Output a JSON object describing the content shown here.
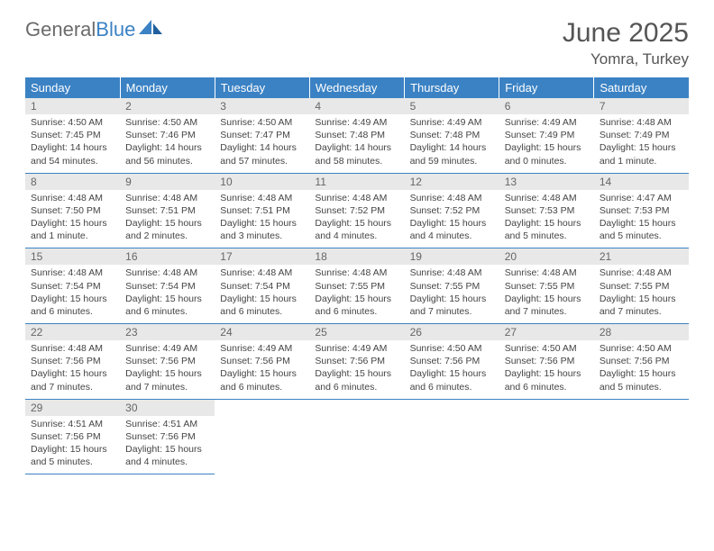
{
  "brand": {
    "part1": "General",
    "part2": "Blue",
    "color_primary": "#3b82c4",
    "color_secondary": "#6b6b6b"
  },
  "title": "June 2025",
  "location": "Yomra, Turkey",
  "weekdays": [
    "Sunday",
    "Monday",
    "Tuesday",
    "Wednesday",
    "Thursday",
    "Friday",
    "Saturday"
  ],
  "colors": {
    "header_bg": "#3b82c4",
    "header_text": "#ffffff",
    "daynum_bg": "#e8e8e8",
    "daynum_text": "#666666",
    "body_text": "#444444",
    "border": "#3b82c4"
  },
  "weeks": [
    [
      {
        "n": "1",
        "sr": "4:50 AM",
        "ss": "7:45 PM",
        "dl": "14 hours and 54 minutes."
      },
      {
        "n": "2",
        "sr": "4:50 AM",
        "ss": "7:46 PM",
        "dl": "14 hours and 56 minutes."
      },
      {
        "n": "3",
        "sr": "4:50 AM",
        "ss": "7:47 PM",
        "dl": "14 hours and 57 minutes."
      },
      {
        "n": "4",
        "sr": "4:49 AM",
        "ss": "7:48 PM",
        "dl": "14 hours and 58 minutes."
      },
      {
        "n": "5",
        "sr": "4:49 AM",
        "ss": "7:48 PM",
        "dl": "14 hours and 59 minutes."
      },
      {
        "n": "6",
        "sr": "4:49 AM",
        "ss": "7:49 PM",
        "dl": "15 hours and 0 minutes."
      },
      {
        "n": "7",
        "sr": "4:48 AM",
        "ss": "7:49 PM",
        "dl": "15 hours and 1 minute."
      }
    ],
    [
      {
        "n": "8",
        "sr": "4:48 AM",
        "ss": "7:50 PM",
        "dl": "15 hours and 1 minute."
      },
      {
        "n": "9",
        "sr": "4:48 AM",
        "ss": "7:51 PM",
        "dl": "15 hours and 2 minutes."
      },
      {
        "n": "10",
        "sr": "4:48 AM",
        "ss": "7:51 PM",
        "dl": "15 hours and 3 minutes."
      },
      {
        "n": "11",
        "sr": "4:48 AM",
        "ss": "7:52 PM",
        "dl": "15 hours and 4 minutes."
      },
      {
        "n": "12",
        "sr": "4:48 AM",
        "ss": "7:52 PM",
        "dl": "15 hours and 4 minutes."
      },
      {
        "n": "13",
        "sr": "4:48 AM",
        "ss": "7:53 PM",
        "dl": "15 hours and 5 minutes."
      },
      {
        "n": "14",
        "sr": "4:47 AM",
        "ss": "7:53 PM",
        "dl": "15 hours and 5 minutes."
      }
    ],
    [
      {
        "n": "15",
        "sr": "4:48 AM",
        "ss": "7:54 PM",
        "dl": "15 hours and 6 minutes."
      },
      {
        "n": "16",
        "sr": "4:48 AM",
        "ss": "7:54 PM",
        "dl": "15 hours and 6 minutes."
      },
      {
        "n": "17",
        "sr": "4:48 AM",
        "ss": "7:54 PM",
        "dl": "15 hours and 6 minutes."
      },
      {
        "n": "18",
        "sr": "4:48 AM",
        "ss": "7:55 PM",
        "dl": "15 hours and 6 minutes."
      },
      {
        "n": "19",
        "sr": "4:48 AM",
        "ss": "7:55 PM",
        "dl": "15 hours and 7 minutes."
      },
      {
        "n": "20",
        "sr": "4:48 AM",
        "ss": "7:55 PM",
        "dl": "15 hours and 7 minutes."
      },
      {
        "n": "21",
        "sr": "4:48 AM",
        "ss": "7:55 PM",
        "dl": "15 hours and 7 minutes."
      }
    ],
    [
      {
        "n": "22",
        "sr": "4:48 AM",
        "ss": "7:56 PM",
        "dl": "15 hours and 7 minutes."
      },
      {
        "n": "23",
        "sr": "4:49 AM",
        "ss": "7:56 PM",
        "dl": "15 hours and 7 minutes."
      },
      {
        "n": "24",
        "sr": "4:49 AM",
        "ss": "7:56 PM",
        "dl": "15 hours and 6 minutes."
      },
      {
        "n": "25",
        "sr": "4:49 AM",
        "ss": "7:56 PM",
        "dl": "15 hours and 6 minutes."
      },
      {
        "n": "26",
        "sr": "4:50 AM",
        "ss": "7:56 PM",
        "dl": "15 hours and 6 minutes."
      },
      {
        "n": "27",
        "sr": "4:50 AM",
        "ss": "7:56 PM",
        "dl": "15 hours and 6 minutes."
      },
      {
        "n": "28",
        "sr": "4:50 AM",
        "ss": "7:56 PM",
        "dl": "15 hours and 5 minutes."
      }
    ],
    [
      {
        "n": "29",
        "sr": "4:51 AM",
        "ss": "7:56 PM",
        "dl": "15 hours and 5 minutes."
      },
      {
        "n": "30",
        "sr": "4:51 AM",
        "ss": "7:56 PM",
        "dl": "15 hours and 4 minutes."
      },
      null,
      null,
      null,
      null,
      null
    ]
  ],
  "labels": {
    "sunrise": "Sunrise:",
    "sunset": "Sunset:",
    "daylight": "Daylight:"
  }
}
